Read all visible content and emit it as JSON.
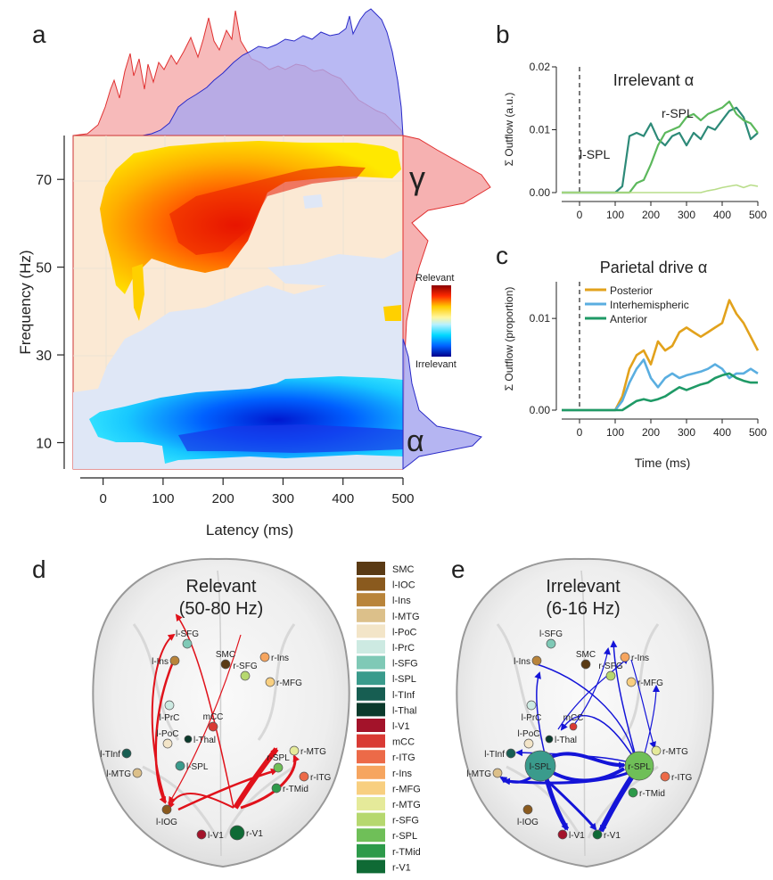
{
  "panels": {
    "a": {
      "letter": "a",
      "xlabel": "Latency (ms)",
      "ylabel": "Frequency (Hz)",
      "gamma_symbol": "γ",
      "alpha_symbol": "α",
      "cbar_top": "Relevant",
      "cbar_bottom": "Irrelevant"
    },
    "b": {
      "letter": "b",
      "title": "Irrelevant α",
      "ylabel": "Σ Outflow (a.u.)",
      "label_lspl": "l-SPL",
      "label_rspl": "r-SPL"
    },
    "c": {
      "letter": "c",
      "title": "Parietal drive α",
      "ylabel": "Σ Outflow (proportion)",
      "xlabel": "Time (ms)"
    },
    "d": {
      "letter": "d",
      "title_line1": "Relevant",
      "title_line2": "(50-80 Hz)"
    },
    "e": {
      "letter": "e",
      "title_line1": "Irrelevant",
      "title_line2": "(6-16 Hz)"
    }
  },
  "colors": {
    "relevant": "#f4a3a3",
    "irrelevant": "#a8a8f0",
    "red_arrow": "#e0121b",
    "blue_arrow": "#1414d8",
    "posterior": "#e2a21c",
    "interhemispheric": "#5aaee0",
    "anterior": "#1f9a66"
  },
  "region_legend": [
    {
      "label": "SMC",
      "color": "#5a3a14"
    },
    {
      "label": "l-IOC",
      "color": "#8a5a1e"
    },
    {
      "label": "l-Ins",
      "color": "#b9843a"
    },
    {
      "label": "l-MTG",
      "color": "#dcc08a"
    },
    {
      "label": "l-PoC",
      "color": "#f3e5c8"
    },
    {
      "label": "l-PrC",
      "color": "#cdeae2"
    },
    {
      "label": "l-SFG",
      "color": "#7fc9b6"
    },
    {
      "label": "l-SPL",
      "color": "#3a9b8c"
    },
    {
      "label": "l-TInf",
      "color": "#175e52"
    },
    {
      "label": "l-Thal",
      "color": "#0b3a2c"
    },
    {
      "label": "l-V1",
      "color": "#a3132a"
    },
    {
      "label": "mCC",
      "color": "#d93a34"
    },
    {
      "label": "r-ITG",
      "color": "#ec6a48"
    },
    {
      "label": "r-Ins",
      "color": "#f6a55f"
    },
    {
      "label": "r-MFG",
      "color": "#f8cf80"
    },
    {
      "label": "r-MTG",
      "color": "#e5ea9a"
    },
    {
      "label": "r-SFG",
      "color": "#b6d86f"
    },
    {
      "label": "r-SPL",
      "color": "#6fbf58"
    },
    {
      "label": "r-TMid",
      "color": "#2d9a4a"
    },
    {
      "label": "r-V1",
      "color": "#0f6a35"
    }
  ],
  "brain_nodes": [
    {
      "label": "l-SFG",
      "color": "#7fc9b6"
    },
    {
      "label": "SMC",
      "color": "#5a3a14"
    },
    {
      "label": "l-Ins",
      "color": "#b9843a"
    },
    {
      "label": "r-Ins",
      "color": "#f6a55f"
    },
    {
      "label": "r-SFG",
      "color": "#b6d86f"
    },
    {
      "label": "r-MFG",
      "color": "#f8cf80"
    },
    {
      "label": "l-PrC",
      "color": "#cdeae2"
    },
    {
      "label": "mCC",
      "color": "#d93a34"
    },
    {
      "label": "l-PoC",
      "color": "#f3e5c8"
    },
    {
      "label": "l-Thal",
      "color": "#0b3a2c"
    },
    {
      "label": "l-TInf",
      "color": "#175e52"
    },
    {
      "label": "l-SPL",
      "color": "#3a9b8c"
    },
    {
      "label": "l-MTG",
      "color": "#dcc08a"
    },
    {
      "label": "r-MTG",
      "color": "#e5ea9a"
    },
    {
      "label": "r-SPL",
      "color": "#6fbf58"
    },
    {
      "label": "r-ITG",
      "color": "#ec6a48"
    },
    {
      "label": "r-TMid",
      "color": "#2d9a4a"
    },
    {
      "label": "l-IOG",
      "color": "#8a5a1e"
    },
    {
      "label": "l-V1",
      "color": "#a3132a"
    },
    {
      "label": "r-V1",
      "color": "#0f6a35"
    }
  ],
  "chart_data": [
    {
      "panel": "a",
      "type": "heatmap",
      "xlabel": "Latency (ms)",
      "ylabel": "Frequency (Hz)",
      "xlim": [
        -50,
        500
      ],
      "ylim": [
        4,
        80
      ],
      "xticks": [
        0,
        100,
        200,
        300,
        400,
        500
      ],
      "yticks": [
        10,
        30,
        50,
        70
      ],
      "colorbar": {
        "top": "Relevant",
        "bottom": "Irrelevant"
      },
      "regions": [
        {
          "name": "Relevant",
          "freq_range": [
            45,
            78
          ],
          "latency_range": [
            50,
            500
          ],
          "peak_freq": 70
        },
        {
          "name": "Irrelevant",
          "freq_range": [
            6,
            24
          ],
          "latency_range": [
            100,
            500
          ],
          "peak_freq": 11
        }
      ],
      "marginal_top": {
        "series": [
          "Relevant",
          "Irrelevant"
        ]
      },
      "marginal_right": {
        "series": [
          "Relevant",
          "Irrelevant"
        ],
        "peaks": [
          {
            "symbol": "γ",
            "freq": 70
          },
          {
            "symbol": "α",
            "freq": 11
          }
        ]
      }
    },
    {
      "panel": "b",
      "type": "line",
      "title": "Irrelevant α",
      "ylabel": "Σ Outflow (a.u.)",
      "xlim": [
        -50,
        500
      ],
      "ylim": [
        0,
        0.02
      ],
      "xticks": [
        0,
        100,
        200,
        300,
        400,
        500
      ],
      "yticks": [
        0.0,
        0.01,
        0.02
      ],
      "x": [
        -50,
        0,
        50,
        100,
        120,
        140,
        160,
        180,
        200,
        220,
        240,
        260,
        280,
        300,
        320,
        340,
        360,
        380,
        400,
        420,
        440,
        460,
        480,
        500
      ],
      "series": [
        {
          "name": "l-SPL",
          "color": "#2d8a78",
          "values": [
            0,
            0,
            0,
            0,
            0.001,
            0.009,
            0.0095,
            0.009,
            0.011,
            0.0085,
            0.0075,
            0.009,
            0.0095,
            0.0075,
            0.0095,
            0.0085,
            0.0105,
            0.01,
            0.0115,
            0.013,
            0.0135,
            0.012,
            0.0085,
            0.0095
          ]
        },
        {
          "name": "r-SPL",
          "color": "#5cb85c",
          "values": [
            0,
            0,
            0,
            0,
            0,
            0,
            0.0015,
            0.002,
            0.0045,
            0.0075,
            0.0095,
            0.01,
            0.0105,
            0.012,
            0.0125,
            0.0115,
            0.0125,
            0.013,
            0.0135,
            0.0145,
            0.0125,
            0.0115,
            0.011,
            0.0095
          ]
        },
        {
          "name": "",
          "color": "#b9dd8a",
          "values": [
            0,
            0,
            0,
            0,
            0,
            0,
            0,
            0,
            0,
            0,
            0,
            0,
            0,
            0,
            0,
            0,
            0.0003,
            0.0005,
            0.0008,
            0.001,
            0.0012,
            0.0008,
            0.0012,
            0.001
          ]
        }
      ]
    },
    {
      "panel": "c",
      "type": "line",
      "title": "Parietal drive α",
      "xlabel": "Time (ms)",
      "ylabel": "Σ Outflow (proportion)",
      "xlim": [
        -50,
        500
      ],
      "ylim": [
        0,
        0.014
      ],
      "xticks": [
        0,
        100,
        200,
        300,
        400,
        500
      ],
      "yticks": [
        0.0,
        0.01
      ],
      "legend": "top-left",
      "x": [
        -50,
        0,
        50,
        100,
        120,
        140,
        160,
        180,
        200,
        220,
        240,
        260,
        280,
        300,
        320,
        340,
        360,
        380,
        400,
        420,
        440,
        460,
        480,
        500
      ],
      "series": [
        {
          "name": "Posterior",
          "color": "#e2a21c",
          "values": [
            0,
            0,
            0,
            0,
            0.0015,
            0.0045,
            0.006,
            0.0065,
            0.005,
            0.0075,
            0.0065,
            0.007,
            0.0085,
            0.009,
            0.0085,
            0.008,
            0.0085,
            0.009,
            0.0095,
            0.012,
            0.0105,
            0.0095,
            0.008,
            0.0065
          ]
        },
        {
          "name": "Interhemispheric",
          "color": "#5aaee0",
          "values": [
            0,
            0,
            0,
            0,
            0.001,
            0.003,
            0.0045,
            0.0055,
            0.0035,
            0.0025,
            0.0035,
            0.004,
            0.0035,
            0.0038,
            0.004,
            0.0042,
            0.0045,
            0.005,
            0.0045,
            0.0035,
            0.004,
            0.004,
            0.0045,
            0.004
          ]
        },
        {
          "name": "Anterior",
          "color": "#1f9a66",
          "values": [
            0,
            0,
            0,
            0,
            0,
            0.0005,
            0.001,
            0.0012,
            0.001,
            0.0012,
            0.0015,
            0.002,
            0.0025,
            0.0022,
            0.0025,
            0.0028,
            0.003,
            0.0035,
            0.0038,
            0.004,
            0.0035,
            0.0032,
            0.003,
            0.003
          ]
        }
      ]
    }
  ]
}
